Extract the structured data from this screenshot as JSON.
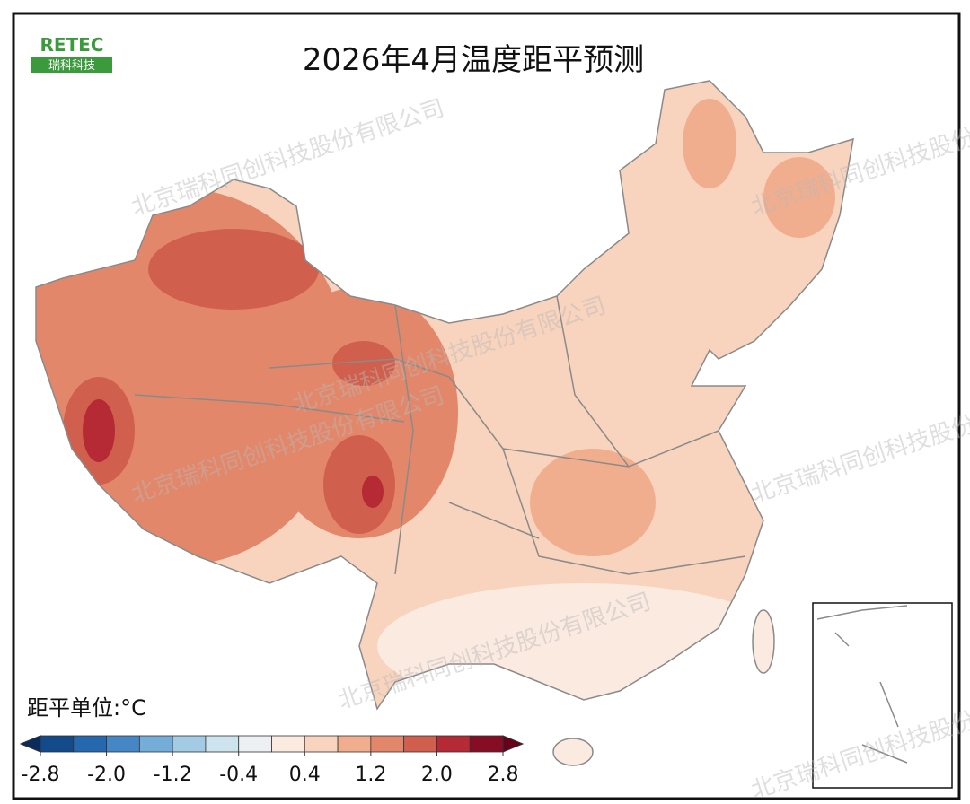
{
  "title": "2026年4月温度距平预测",
  "logo": {
    "name": "RETEC",
    "subtitle": "瑞科科技"
  },
  "watermark": "北京瑞科同创科技股份有限公司",
  "legend": {
    "unit_label": "距平单位:°C",
    "lim": [
      -2.8,
      2.8
    ],
    "ticks": [
      -2.8,
      {
        "value": -2.0,
        "label": "-2.0"
      },
      -1.2,
      -0.4,
      0.4,
      1.2,
      {
        "value": 2.0,
        "label": "2.0"
      },
      2.8
    ],
    "colors": [
      "#124a8a",
      "#2668ad",
      "#4587c4",
      "#74aed8",
      "#a3cce4",
      "#cde3ee",
      "#ecf0f2",
      "#fbeae0",
      "#f8d3bd",
      "#f0ae8f",
      "#e3876a",
      "#d0604d",
      "#b52a35",
      "#860d24"
    ],
    "extend_colors": [
      "#0a2b5c",
      "#690019"
    ]
  }
}
